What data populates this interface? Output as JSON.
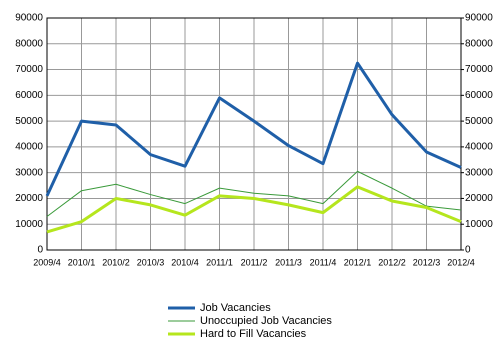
{
  "chart_data": {
    "type": "line",
    "categories": [
      "2009/4",
      "2010/1",
      "2010/2",
      "2010/3",
      "2010/4",
      "2011/1",
      "2011/2",
      "2011/3",
      "2011/4",
      "2012/1",
      "2012/2",
      "2012/3",
      "2012/4"
    ],
    "series": [
      {
        "name": "Job Vacancies",
        "color": "#1f5fa8",
        "width": 3,
        "values": [
          21000,
          50000,
          48500,
          37000,
          32500,
          59000,
          50000,
          40500,
          33500,
          72500,
          52500,
          38000,
          32000
        ]
      },
      {
        "name": "Unoccupied Job Vacancies",
        "color": "#3a9a3a",
        "width": 1,
        "values": [
          13000,
          23000,
          25500,
          21500,
          18000,
          24000,
          22000,
          21000,
          18000,
          30500,
          24000,
          17000,
          15500
        ]
      },
      {
        "name": "Hard to Fill Vacancies",
        "color": "#b5e61d",
        "width": 3,
        "values": [
          7000,
          11000,
          20000,
          17500,
          13500,
          21000,
          20000,
          17500,
          14500,
          24500,
          19000,
          16500,
          11000
        ]
      }
    ],
    "ylim": [
      0,
      90000
    ],
    "yticks": [
      0,
      10000,
      20000,
      30000,
      40000,
      50000,
      60000,
      70000,
      80000,
      90000
    ],
    "y2lim": [
      0,
      90000
    ],
    "y2ticks": [
      0,
      10000,
      20000,
      30000,
      40000,
      50000,
      60000,
      70000,
      80000,
      90000
    ],
    "grid": true,
    "legend": "bottom"
  }
}
